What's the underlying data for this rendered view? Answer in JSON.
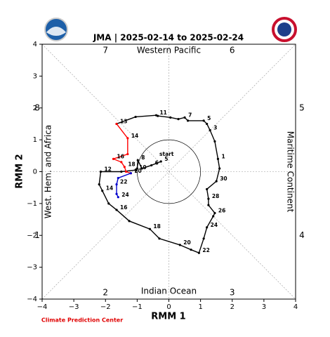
{
  "chart_data": {
    "type": "line",
    "title": "JMA | 2025-02-14 to 2025-02-24",
    "xlabel": "RMM 1",
    "ylabel": "RMM 2",
    "xlim": [
      -4,
      4
    ],
    "ylim": [
      -4,
      4
    ],
    "xticks": [
      {
        "value": -4,
        "label": "−4"
      },
      {
        "value": -3,
        "label": "−3"
      },
      {
        "value": -2,
        "label": "−2"
      },
      {
        "value": -1,
        "label": "−1"
      },
      0,
      1,
      2,
      3,
      4
    ],
    "yticks": [
      {
        "value": -4,
        "label": "−4"
      },
      {
        "value": -3,
        "label": "−3"
      },
      {
        "value": -2,
        "label": "−2"
      },
      {
        "value": -1,
        "label": "−1"
      },
      0,
      1,
      2,
      3,
      4
    ],
    "circle_radius": 1,
    "start_label": "start",
    "phase_labels": [
      "1",
      "2",
      "3",
      "4",
      "5",
      "6",
      "7",
      "8"
    ],
    "region_labels": [
      "West. Hem. and Africa",
      "Indian Ocean",
      "Maritime Continent",
      "Western Pacific"
    ],
    "footer": "Climate Prediction Center",
    "series": [
      {
        "color": "#000000",
        "x": [
          -0.25,
          -0.55,
          -0.85,
          -0.98,
          -1.0,
          -1.05,
          -1.5,
          -2.15,
          -2.2,
          -2.1,
          -1.9,
          -1.65,
          -1.25,
          -0.6,
          -0.3,
          0.35,
          0.7,
          0.95,
          1.1,
          1.2,
          1.4,
          1.45,
          1.25,
          1.25,
          1.2,
          1.5,
          1.6,
          1.55,
          1.45,
          1.3,
          1.2,
          1.1,
          0.6,
          0.5,
          0.3,
          0.05,
          -0.35,
          -0.4,
          -1.05,
          -1.65
        ],
        "y": [
          0.32,
          0.2,
          0.1,
          0.36,
          0.1,
          0.05,
          0.0,
          0.0,
          -0.4,
          -0.6,
          -1.0,
          -1.2,
          -1.55,
          -1.8,
          -2.1,
          -2.3,
          -2.45,
          -2.55,
          -2.1,
          -1.75,
          -1.4,
          -1.3,
          -1.05,
          -0.85,
          -0.55,
          -0.3,
          0.1,
          0.4,
          0.95,
          1.3,
          1.5,
          1.6,
          1.6,
          1.7,
          1.65,
          1.7,
          1.75,
          1.77,
          1.72,
          1.5
        ],
        "point_labels": [
          "5",
          "6",
          null,
          "8",
          null,
          "10",
          null,
          "12",
          null,
          "14",
          null,
          "16",
          null,
          "18",
          null,
          "20",
          null,
          "22",
          null,
          "24",
          null,
          "26",
          null,
          "28",
          null,
          "30",
          null,
          "1",
          null,
          "3",
          null,
          "5",
          null,
          "7",
          null,
          null,
          null,
          "11",
          null,
          "13"
        ]
      },
      {
        "color": "#ff0000",
        "x": [
          -1.65,
          -1.3,
          -1.3,
          -1.75,
          -1.5,
          -1.4,
          -1.35,
          -1.2
        ],
        "y": [
          1.5,
          1.05,
          0.55,
          0.4,
          0.3,
          0.15,
          0.0,
          -0.05
        ],
        "point_labels": [
          null,
          "14",
          null,
          "16",
          null,
          "18",
          null,
          "20"
        ]
      },
      {
        "color": "#0000cc",
        "x": [
          -1.2,
          -1.6,
          -1.65,
          -1.65,
          -1.6
        ],
        "y": [
          -0.05,
          -0.2,
          -0.4,
          -0.7,
          -0.8
        ],
        "point_labels": [
          null,
          null,
          "22",
          null,
          "24"
        ]
      }
    ]
  }
}
